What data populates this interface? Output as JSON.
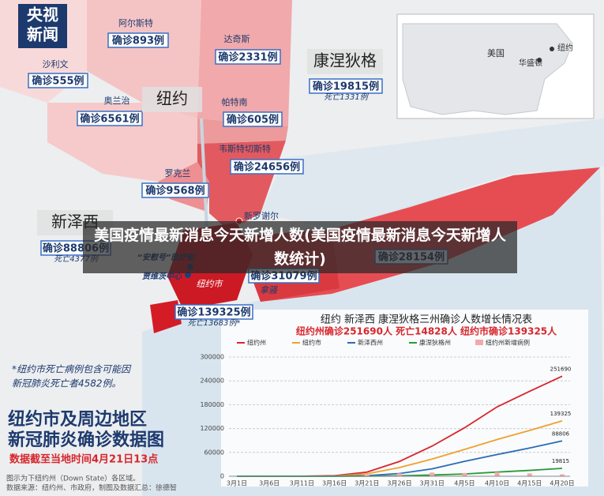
{
  "logo": [
    "央视",
    "新闻"
  ],
  "overlay_title": "美国疫情最新消息今天新增人数(美国疫情最新消息今天新增人数统计)",
  "regions": [
    {
      "name": "阿尔斯特",
      "cases": "确诊893例"
    },
    {
      "name": "沙利文",
      "cases": "确诊555例"
    },
    {
      "name": "达奇斯",
      "cases": "确诊2331例"
    },
    {
      "name": "康涅狄格",
      "cases": "确诊19815例",
      "deaths": "死亡1331例"
    },
    {
      "name": "奥兰治",
      "cases": "确诊6561例"
    },
    {
      "name": "帕特南",
      "cases": "确诊605例"
    },
    {
      "name": "韦斯特切斯特",
      "cases": "确诊24656例"
    },
    {
      "name": "罗克兰",
      "cases": "确诊9568例"
    },
    {
      "name": "新泽西",
      "cases": "确诊88806例",
      "deaths": "死亡4377例"
    },
    {
      "cases": "确诊28154例"
    },
    {
      "cases": "确诊31079例"
    },
    {
      "cases": "确诊139325例",
      "deaths": "死亡13683例*"
    }
  ],
  "places": [
    "纽约",
    "新罗谢尔",
    "“安慰号”医疗船",
    "贾维茨中心",
    "纽约市",
    "拿骚"
  ],
  "inset": {
    "country": "美国",
    "capital": "华盛顿",
    "city": "纽约"
  },
  "note": [
    "*纽约市死亡病例包含可能因",
    "新冠肺炎死亡者4582例。"
  ],
  "headline": [
    "纽约市及周边地区",
    "新冠肺炎确诊数据图"
  ],
  "date_line": "数据截至当地时间4月21日13点",
  "source": [
    "图示为下纽约州（Down State）各区域。",
    "数据来源：纽约州、市政府，制图及数据汇总：徐德智"
  ],
  "chart_data": {
    "type": "line",
    "title": "纽约 新泽西 康涅狄格三州确诊人数增长情况表",
    "subtitle": "纽约州确诊251690人 死亡14828人 纽约市确诊139325人",
    "categories": [
      "3月1日",
      "3月6日",
      "3月11日",
      "3月16日",
      "3月21日",
      "3月26日",
      "3月31日",
      "4月5日",
      "4月10日",
      "4月15日",
      "4月20日"
    ],
    "series": [
      {
        "name": "纽约州",
        "color": "#d7262b",
        "values": [
          1,
          44,
          216,
          1374,
          10356,
          37258,
          75795,
          122031,
          174489,
          213779,
          251690
        ]
      },
      {
        "name": "纽约市",
        "color": "#f0a030",
        "values": [
          1,
          11,
          52,
          463,
          6211,
          21873,
          43139,
          67551,
          92384,
          115214,
          139325
        ]
      },
      {
        "name": "新泽西州",
        "color": "#2a6bb5",
        "values": [
          0,
          1,
          23,
          178,
          1327,
          6876,
          18696,
          37505,
          54588,
          71030,
          88806
        ]
      },
      {
        "name": "康涅狄格州",
        "color": "#2a9a3a",
        "values": [
          0,
          0,
          1,
          41,
          194,
          1012,
          3128,
          5675,
          10538,
          14755,
          19815
        ]
      },
      {
        "name": "纽约州新增病例",
        "color": "#f2a9a9",
        "kind": "bar",
        "values": [
          0,
          11,
          54,
          432,
          2950,
          7377,
          9298,
          8327,
          10575,
          7177,
          4726
        ]
      }
    ],
    "ylim": [
      0,
      300000
    ],
    "yticks": [
      0,
      60000,
      120000,
      180000,
      240000,
      300000
    ],
    "grid": true
  }
}
